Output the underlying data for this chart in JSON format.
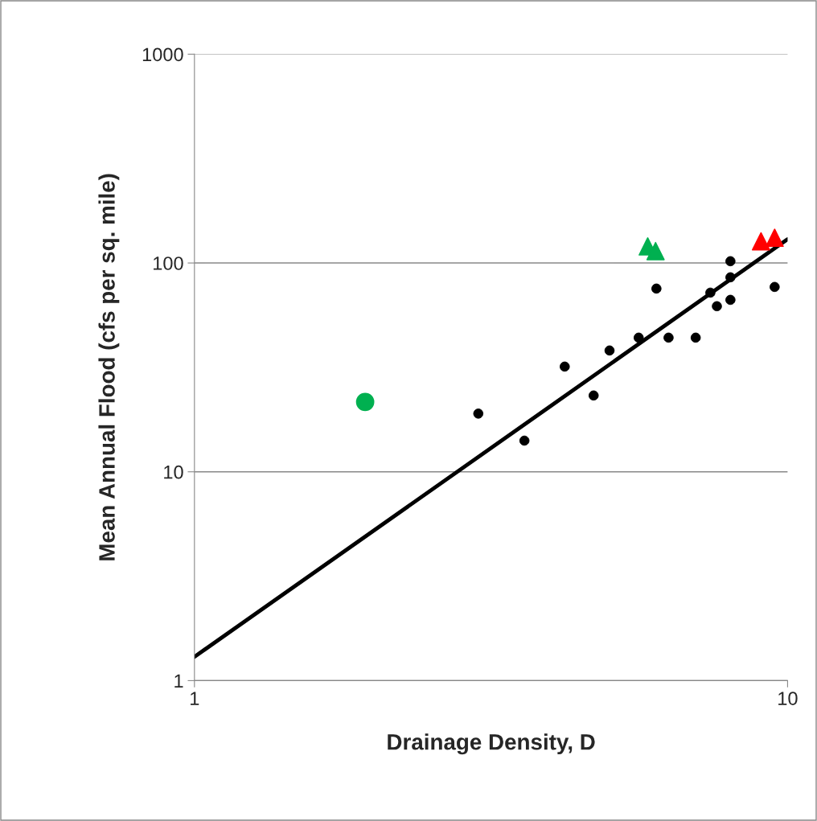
{
  "chart_data": {
    "type": "scatter",
    "xlabel": "Drainage Density, D",
    "ylabel": "Mean Annual Flood (cfs per sq. mile)",
    "log": "xy",
    "xlim": [
      1,
      10
    ],
    "xticks": [
      1,
      10
    ],
    "ylim": [
      1,
      1000
    ],
    "yticks": [
      1,
      10,
      100,
      1000
    ],
    "grid": "y",
    "legend": false,
    "series": [
      {
        "type": "line",
        "color": "#000000",
        "marker": "none",
        "line_style": "solid",
        "x": [
          1,
          10
        ],
        "values": [
          1.3,
          130
        ]
      },
      {
        "color": "#000000",
        "marker": "circle",
        "x": [
          3.01,
          3.6,
          4.21,
          4.71,
          5.01,
          5.61,
          6.01,
          6.3,
          7.0,
          7.41,
          7.6,
          8.01,
          8.01,
          8.01,
          9.51
        ],
        "values": [
          19.0,
          14.1,
          31.9,
          23.2,
          38.1,
          43.9,
          75.4,
          43.9,
          43.9,
          72.1,
          62.1,
          102,
          85.4,
          66.6,
          76.8
        ]
      },
      {
        "color": "#00b050",
        "marker": "circle",
        "x": [
          1.94
        ],
        "values": [
          21.6
        ]
      },
      {
        "color": "#00b050",
        "marker": "triangle",
        "x": [
          5.81,
          5.99
        ],
        "values": [
          120,
          114
        ]
      },
      {
        "color": "#ff0000",
        "marker": "triangle",
        "x": [
          9.02,
          9.51
        ],
        "values": [
          127,
          132
        ]
      }
    ]
  }
}
